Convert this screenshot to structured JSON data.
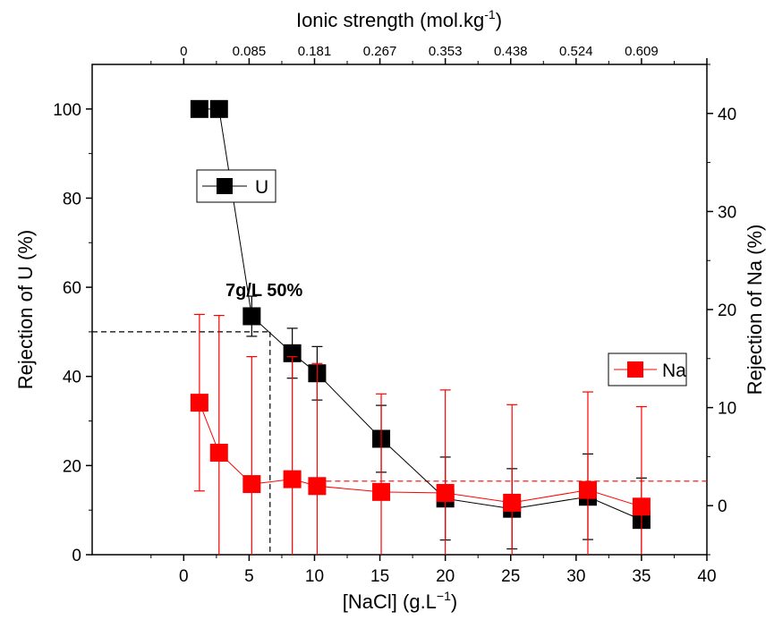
{
  "chart_data": {
    "type": "scatter",
    "x_axis": {
      "label_main": "[NaCl] (g.L",
      "label_sup": "−1",
      "label_end": ")",
      "range": [
        -7,
        40
      ],
      "ticks": [
        0,
        5,
        10,
        15,
        20,
        25,
        30,
        35,
        40
      ],
      "tick_labels": [
        "0",
        "5",
        "10",
        "15",
        "20",
        "25",
        "30",
        "35",
        "40"
      ]
    },
    "top_axis": {
      "label_main": "Ionic strength (mol.kg",
      "label_sup": "-1",
      "label_end": ")",
      "ticks_nacl": [
        0,
        5,
        10,
        15,
        20,
        25,
        30,
        35
      ],
      "tick_labels": [
        "0",
        "0.085",
        "0.181",
        "0.267",
        "0.353",
        "0.438",
        "0.524",
        "0.609"
      ]
    },
    "y_left": {
      "label": "Rejection of U (%)",
      "range": [
        0,
        110
      ],
      "ticks": [
        0,
        20,
        40,
        60,
        80,
        100
      ],
      "tick_labels": [
        "0",
        "20",
        "40",
        "60",
        "80",
        "100"
      ]
    },
    "y_right": {
      "label": "Rejection of Na (%)",
      "range": [
        -5,
        45
      ],
      "ticks": [
        0,
        10,
        20,
        30,
        40
      ],
      "tick_labels": [
        "0",
        "10",
        "20",
        "30",
        "40"
      ],
      "color": "#ff0000"
    },
    "series": [
      {
        "name": "U",
        "color": "#000000",
        "axis": "left",
        "x": [
          1.2,
          2.7,
          5.2,
          8.3,
          10.2,
          15.1,
          20.0,
          25.1,
          30.9,
          35.0
        ],
        "y": [
          100,
          100,
          53.5,
          45.2,
          40.7,
          26.0,
          12.6,
          10.3,
          13.0,
          7.8
        ],
        "y_err": [
          0,
          0,
          4.5,
          5.6,
          6.0,
          7.5,
          9.3,
          9.0,
          9.6,
          9.4
        ]
      },
      {
        "name": "Na",
        "color": "#ff0000",
        "axis": "right",
        "x": [
          1.2,
          2.7,
          5.2,
          8.3,
          10.2,
          15.1,
          20.0,
          25.1,
          30.9,
          35.0
        ],
        "y": [
          10.5,
          5.4,
          2.2,
          2.7,
          2.0,
          1.4,
          1.3,
          0.3,
          1.6,
          -0.1
        ],
        "y_err": [
          9.0,
          14.0,
          13.0,
          12.5,
          12.5,
          10.0,
          10.5,
          10.0,
          10.0,
          10.2
        ]
      }
    ],
    "reference_lines": {
      "u_50_label": "7g/L 50%",
      "u_50_x": 6.6,
      "u_50_y": 50,
      "na_level_right": 2.5
    },
    "legend": [
      {
        "name": "U",
        "color": "#000000",
        "placement": "upper-left"
      },
      {
        "name": "Na",
        "color": "#ff0000",
        "placement": "right"
      }
    ],
    "grid": false
  }
}
